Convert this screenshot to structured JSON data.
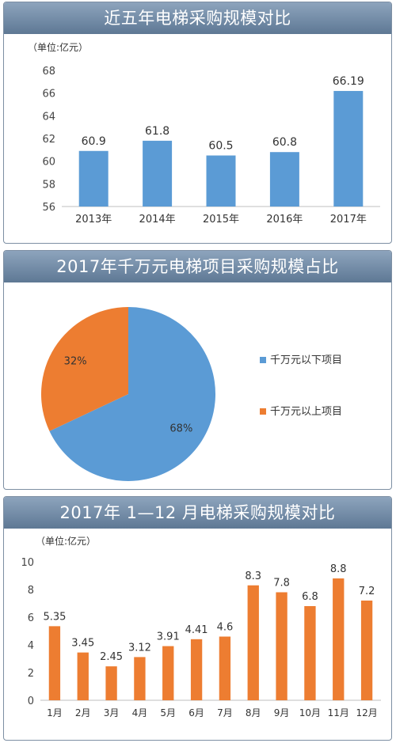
{
  "chart_data": [
    {
      "type": "bar",
      "title": "近五年电梯采购规模对比",
      "unit_label": "（单位:亿元）",
      "categories": [
        "2013年",
        "2014年",
        "2015年",
        "2016年",
        "2017年"
      ],
      "values": [
        60.9,
        61.8,
        60.5,
        60.8,
        66.19
      ],
      "value_labels": [
        "60.9",
        "61.8",
        "60.5",
        "60.8",
        "66.19"
      ],
      "ylim": [
        56,
        68
      ],
      "yticks": [
        "56",
        "58",
        "60",
        "62",
        "64",
        "66",
        "68"
      ],
      "color": "#5b9bd5",
      "grid": false
    },
    {
      "type": "pie",
      "title": "2017年千万元电梯项目采购规模占比",
      "slices": [
        {
          "label": "千万元以下项目",
          "value": 68,
          "text": "68%",
          "color": "#5b9bd5"
        },
        {
          "label": "千万元以上项目",
          "value": 32,
          "text": "32%",
          "color": "#ed7d31"
        }
      ],
      "legend_position": "right"
    },
    {
      "type": "bar",
      "title": "2017年 1—12 月电梯采购规模对比",
      "unit_label": "（单位:亿元）",
      "categories": [
        "1月",
        "2月",
        "3月",
        "4月",
        "5月",
        "6月",
        "7月",
        "8月",
        "9月",
        "10月",
        "11月",
        "12月"
      ],
      "values": [
        5.35,
        3.45,
        2.45,
        3.12,
        3.91,
        4.41,
        4.6,
        8.3,
        7.8,
        6.8,
        8.8,
        7.2
      ],
      "value_labels": [
        "5.35",
        "3.45",
        "2.45",
        "3.12",
        "3.91",
        "4.41",
        "4.6",
        "8.3",
        "7.8",
        "6.8",
        "8.8",
        "7.2"
      ],
      "ylim": [
        0,
        10
      ],
      "yticks": [
        "0",
        "2",
        "4",
        "6",
        "8",
        "10"
      ],
      "color": "#ed7d31",
      "grid": false
    }
  ]
}
